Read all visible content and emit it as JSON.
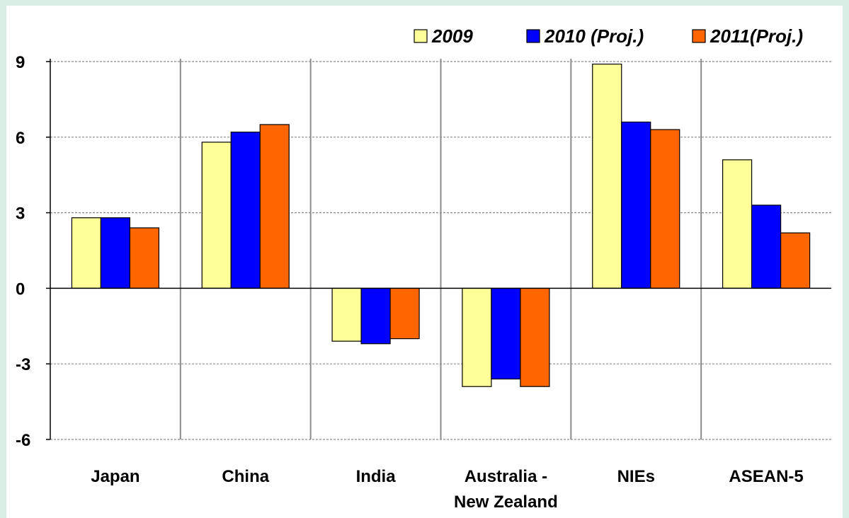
{
  "chart_data": {
    "type": "bar",
    "categories": [
      "Japan",
      "China",
      "India",
      "Australia - New Zealand",
      "NIEs",
      "ASEAN-5"
    ],
    "category_label_lines": [
      [
        "Japan"
      ],
      [
        "China"
      ],
      [
        "India"
      ],
      [
        "Australia -",
        "New Zealand"
      ],
      [
        "NIEs"
      ],
      [
        "ASEAN-5"
      ]
    ],
    "series": [
      {
        "name": "2009",
        "color": "#ffff99",
        "values": [
          2.8,
          5.8,
          -2.1,
          -3.9,
          8.9,
          5.1
        ]
      },
      {
        "name": "2010 (Proj.)",
        "color": "#0000ff",
        "values": [
          2.8,
          6.2,
          -2.2,
          -3.6,
          6.6,
          3.3
        ]
      },
      {
        "name": "2011(Proj.)",
        "color": "#ff6600",
        "values": [
          2.4,
          6.5,
          -2.0,
          -3.9,
          6.3,
          2.2
        ]
      }
    ],
    "yticks": [
      9,
      6,
      3,
      0,
      -3,
      -6
    ],
    "ylim": [
      -6,
      9
    ],
    "grid": true,
    "legend_position": "top-right",
    "title": "",
    "xlabel": "",
    "ylabel": ""
  }
}
